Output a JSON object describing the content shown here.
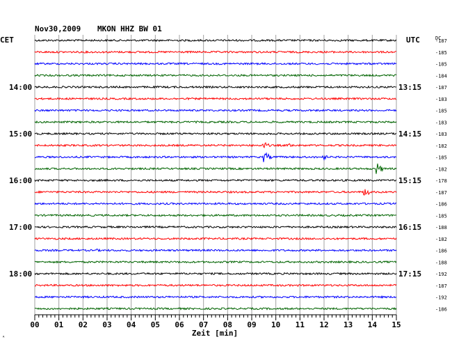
{
  "header": {
    "date": "Nov30,2009",
    "station": "MKON HHZ BW 01",
    "left_zone": "CET",
    "right_zone": "UTC",
    "dc_label": "DC"
  },
  "chart_data": {
    "type": "line",
    "title": "Nov30,2009   MKON HHZ BW 01",
    "xlabel": "Zeit [min]",
    "xlim": [
      0,
      15
    ],
    "x_ticks": [
      "00",
      "01",
      "02",
      "03",
      "04",
      "05",
      "06",
      "07",
      "08",
      "09",
      "10",
      "11",
      "12",
      "13",
      "14",
      "15"
    ],
    "trace_minutes": 15,
    "trace_count": 24,
    "trace_colors": [
      "#000000",
      "#ff0000",
      "#0000ff",
      "#006400"
    ],
    "left_hour_labels": [
      {
        "trace": 4,
        "label": "14:00"
      },
      {
        "trace": 8,
        "label": "15:00"
      },
      {
        "trace": 12,
        "label": "16:00"
      },
      {
        "trace": 16,
        "label": "17:00"
      },
      {
        "trace": 20,
        "label": "18:00"
      }
    ],
    "right_hour_labels": [
      {
        "trace": 4,
        "label": "13:15"
      },
      {
        "trace": 8,
        "label": "14:15"
      },
      {
        "trace": 12,
        "label": "15:15"
      },
      {
        "trace": 16,
        "label": "16:15"
      },
      {
        "trace": 20,
        "label": "17:15"
      }
    ],
    "dc_offsets": [
      "-187",
      "-185",
      "-185",
      "-184",
      "-187",
      "-183",
      "-185",
      "-183",
      "-183",
      "-182",
      "-185",
      "-182",
      "-178",
      "-187",
      "-186",
      "-185",
      "-188",
      "-182",
      "-186",
      "-188",
      "-192",
      "-187",
      "-192",
      "-186"
    ],
    "events": [
      {
        "trace": 9,
        "minute": 9.5,
        "amplitude": 6
      },
      {
        "trace": 9,
        "minute": 10.6,
        "amplitude": 3
      },
      {
        "trace": 10,
        "minute": 9.55,
        "amplitude": 8
      },
      {
        "trace": 10,
        "minute": 12.0,
        "amplitude": 4
      },
      {
        "trace": 11,
        "minute": 14.2,
        "amplitude": 9
      },
      {
        "trace": 13,
        "minute": 13.7,
        "amplitude": 7
      },
      {
        "trace": 18,
        "minute": 2.6,
        "amplitude": 2
      }
    ]
  },
  "footer": {
    "corner_mark": "ᴬ"
  }
}
